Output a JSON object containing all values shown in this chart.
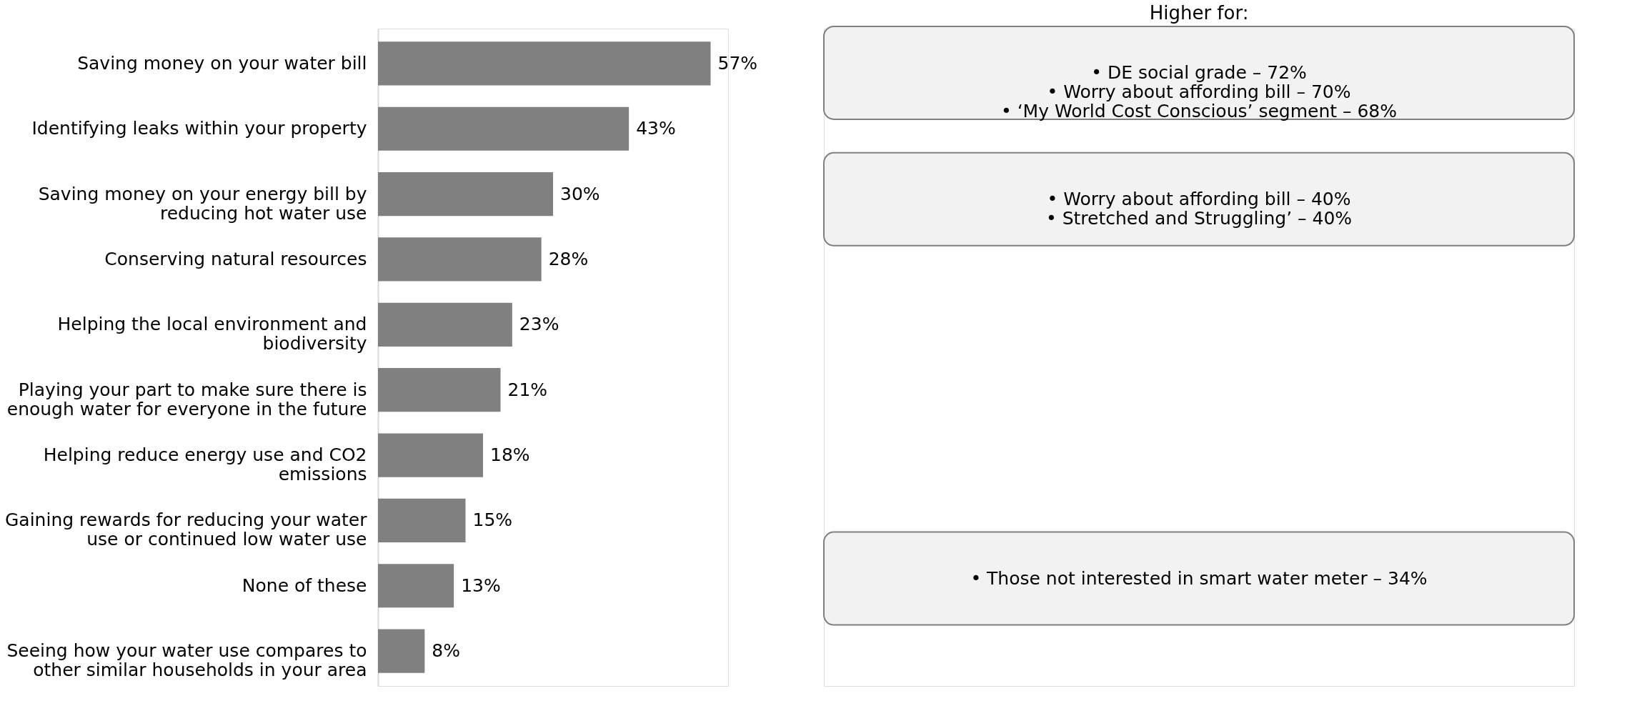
{
  "chart_data": {
    "type": "bar",
    "orientation": "horizontal",
    "color": "#808080",
    "categories": [
      "Saving money on your water bill",
      "Identifying leaks within your property",
      "Saving money on your energy bill by reducing hot water use",
      "Conserving natural resources",
      "Helping the local environment and biodiversity",
      "Playing your part to make sure there is enough water for everyone in the future",
      "Helping reduce energy use and CO2 emissions",
      "Gaining rewards for reducing your water use or continued low water use",
      "None of these",
      "Seeing how your water use compares to other similar households in your area"
    ],
    "values": [
      57,
      43,
      30,
      28,
      23,
      21,
      18,
      15,
      13,
      8
    ],
    "value_labels": [
      "57%",
      "43%",
      "30%",
      "28%",
      "23%",
      "21%",
      "18%",
      "15%",
      "13%",
      "8%"
    ],
    "tick_labels": "y",
    "annotations": [
      "Higher for:",
      "•   DE social grade – 72%\n•   Worry about affording bill – 70%\n•   ‘My World Cost Conscious’ segment  – 68%",
      "•   Worry about affording bill – 40%\n•   Stretched and Struggling’ – 40%",
      "•   Those not interested in smart water meter – 34%"
    ]
  }
}
